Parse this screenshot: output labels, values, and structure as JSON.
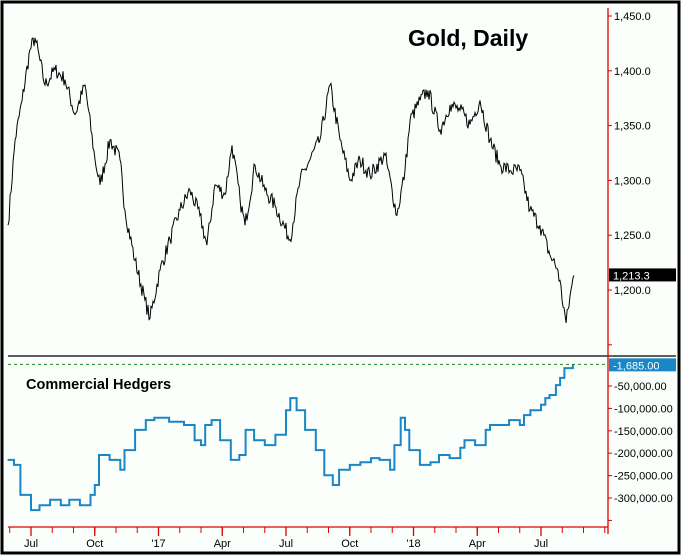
{
  "chart_data": [
    {
      "type": "line",
      "title": "Gold, Daily",
      "x_unit": "months since Jul 2016",
      "ylim": [
        1150,
        1460
      ],
      "y_ticks": [
        1450,
        1400,
        1350,
        1300,
        1250,
        1200
      ],
      "y_tick_labels": [
        "1,450.0",
        "1,400.0",
        "1,350.0",
        "1,300.0",
        "1,250.0",
        "1,200.0"
      ],
      "last_value": 1213.3,
      "last_label": "1,213.3",
      "series": [
        {
          "name": "Gold",
          "color": "#000000",
          "points": [
            [
              -1.08,
              1259
            ],
            [
              -0.75,
              1337
            ],
            [
              -0.42,
              1373
            ],
            [
              -0.05,
              1419
            ],
            [
              0.19,
              1430
            ],
            [
              0.66,
              1387
            ],
            [
              1.13,
              1401
            ],
            [
              1.6,
              1392
            ],
            [
              2.07,
              1360
            ],
            [
              2.54,
              1387
            ],
            [
              3.01,
              1319
            ],
            [
              3.25,
              1296
            ],
            [
              3.72,
              1337
            ],
            [
              4.19,
              1319
            ],
            [
              4.42,
              1273
            ],
            [
              4.89,
              1227
            ],
            [
              5.36,
              1191
            ],
            [
              5.6,
              1174
            ],
            [
              6.07,
              1218
            ],
            [
              6.54,
              1246
            ],
            [
              7.01,
              1273
            ],
            [
              7.48,
              1291
            ],
            [
              7.95,
              1268
            ],
            [
              8.28,
              1241
            ],
            [
              8.66,
              1296
            ],
            [
              9.13,
              1287
            ],
            [
              9.46,
              1332
            ],
            [
              9.84,
              1282
            ],
            [
              10.07,
              1259
            ],
            [
              10.54,
              1314
            ],
            [
              11.01,
              1291
            ],
            [
              11.48,
              1277
            ],
            [
              12.19,
              1246
            ],
            [
              12.66,
              1300
            ],
            [
              13.13,
              1319
            ],
            [
              13.6,
              1337
            ],
            [
              14.07,
              1387
            ],
            [
              14.54,
              1337
            ],
            [
              15.01,
              1300
            ],
            [
              15.48,
              1319
            ],
            [
              15.95,
              1305
            ],
            [
              16.66,
              1323
            ],
            [
              17.22,
              1268
            ],
            [
              17.6,
              1309
            ],
            [
              17.84,
              1355
            ],
            [
              18.31,
              1373
            ],
            [
              18.68,
              1382
            ],
            [
              19.25,
              1346
            ],
            [
              19.72,
              1369
            ],
            [
              20.19,
              1364
            ],
            [
              20.66,
              1351
            ],
            [
              21.13,
              1373
            ],
            [
              21.6,
              1337
            ],
            [
              22.07,
              1314
            ],
            [
              22.54,
              1309
            ],
            [
              23.01,
              1309
            ],
            [
              23.48,
              1273
            ],
            [
              23.95,
              1259
            ],
            [
              24.42,
              1232
            ],
            [
              24.8,
              1218
            ],
            [
              25.18,
              1170
            ],
            [
              25.46,
              1205
            ],
            [
              25.55,
              1213.3
            ]
          ]
        }
      ]
    },
    {
      "type": "line",
      "title": "Commercial Hedgers",
      "x_unit": "months since Jul 2016",
      "ylim": [
        -340000,
        10000
      ],
      "y_ticks": [
        -50000,
        -100000,
        -150000,
        -200000,
        -250000,
        -300000
      ],
      "y_tick_labels": [
        "-50,000.00",
        "-100,000.00",
        "-150,000.00",
        "-200,000.00",
        "-250,000.00",
        "-300,000.00"
      ],
      "last_value": -1685,
      "last_label": "-1,685.00",
      "series": [
        {
          "name": "Commercial Hedgers",
          "color": "#1a86c6",
          "style": "step",
          "points": [
            [
              -1.1,
              -215000
            ],
            [
              -0.8,
              -226000
            ],
            [
              -0.5,
              -293000
            ],
            [
              0,
              -327000
            ],
            [
              0.4,
              -316000
            ],
            [
              0.9,
              -304000
            ],
            [
              1.4,
              -316000
            ],
            [
              1.8,
              -304000
            ],
            [
              2.3,
              -316000
            ],
            [
              2.8,
              -293000
            ],
            [
              3,
              -271000
            ],
            [
              3.2,
              -204000
            ],
            [
              3.7,
              -215000
            ],
            [
              4.2,
              -237000
            ],
            [
              4.4,
              -193000
            ],
            [
              4.9,
              -148000
            ],
            [
              5.4,
              -126000
            ],
            [
              5.8,
              -121000
            ],
            [
              6.5,
              -130000
            ],
            [
              7.2,
              -137000
            ],
            [
              7.7,
              -171000
            ],
            [
              8,
              -182000
            ],
            [
              8.2,
              -137000
            ],
            [
              8.5,
              -126000
            ],
            [
              8.9,
              -171000
            ],
            [
              9.4,
              -215000
            ],
            [
              9.8,
              -204000
            ],
            [
              10.1,
              -148000
            ],
            [
              10.5,
              -171000
            ],
            [
              11,
              -182000
            ],
            [
              11.5,
              -159000
            ],
            [
              12,
              -104000
            ],
            [
              12.2,
              -77000
            ],
            [
              12.5,
              -104000
            ],
            [
              12.9,
              -148000
            ],
            [
              13.4,
              -193000
            ],
            [
              13.8,
              -249000
            ],
            [
              14.2,
              -271000
            ],
            [
              14.5,
              -237000
            ],
            [
              15,
              -226000
            ],
            [
              15.5,
              -220000
            ],
            [
              16,
              -211000
            ],
            [
              16.4,
              -215000
            ],
            [
              16.9,
              -237000
            ],
            [
              17.1,
              -182000
            ],
            [
              17.4,
              -121000
            ],
            [
              17.6,
              -148000
            ],
            [
              17.8,
              -193000
            ],
            [
              18.3,
              -226000
            ],
            [
              18.8,
              -220000
            ],
            [
              19.2,
              -204000
            ],
            [
              19.7,
              -211000
            ],
            [
              20.2,
              -188000
            ],
            [
              20.4,
              -171000
            ],
            [
              20.9,
              -182000
            ],
            [
              21.4,
              -148000
            ],
            [
              21.6,
              -137000
            ],
            [
              22.1,
              -137000
            ],
            [
              22.5,
              -126000
            ],
            [
              23,
              -137000
            ],
            [
              23.2,
              -115000
            ],
            [
              23.5,
              -104000
            ],
            [
              24,
              -92000
            ],
            [
              24.2,
              -77000
            ],
            [
              24.4,
              -70000
            ],
            [
              24.7,
              -48000
            ],
            [
              24.9,
              -32000
            ],
            [
              25.1,
              -10000
            ],
            [
              25.5,
              -1685
            ]
          ]
        }
      ]
    }
  ],
  "x_axis": {
    "tick_labels": [
      "Jul",
      "Oct",
      "'17",
      "Apr",
      "Jul",
      "Oct",
      "'18",
      "Apr",
      "Jul"
    ],
    "tick_months": [
      0,
      3,
      6,
      9,
      12,
      15,
      18,
      21,
      24
    ]
  },
  "colors": {
    "axis": "#e00000",
    "background": "#fbfffb",
    "hedgers_label_bg": "#1a86c6",
    "dashed": "#1a8a1a"
  }
}
